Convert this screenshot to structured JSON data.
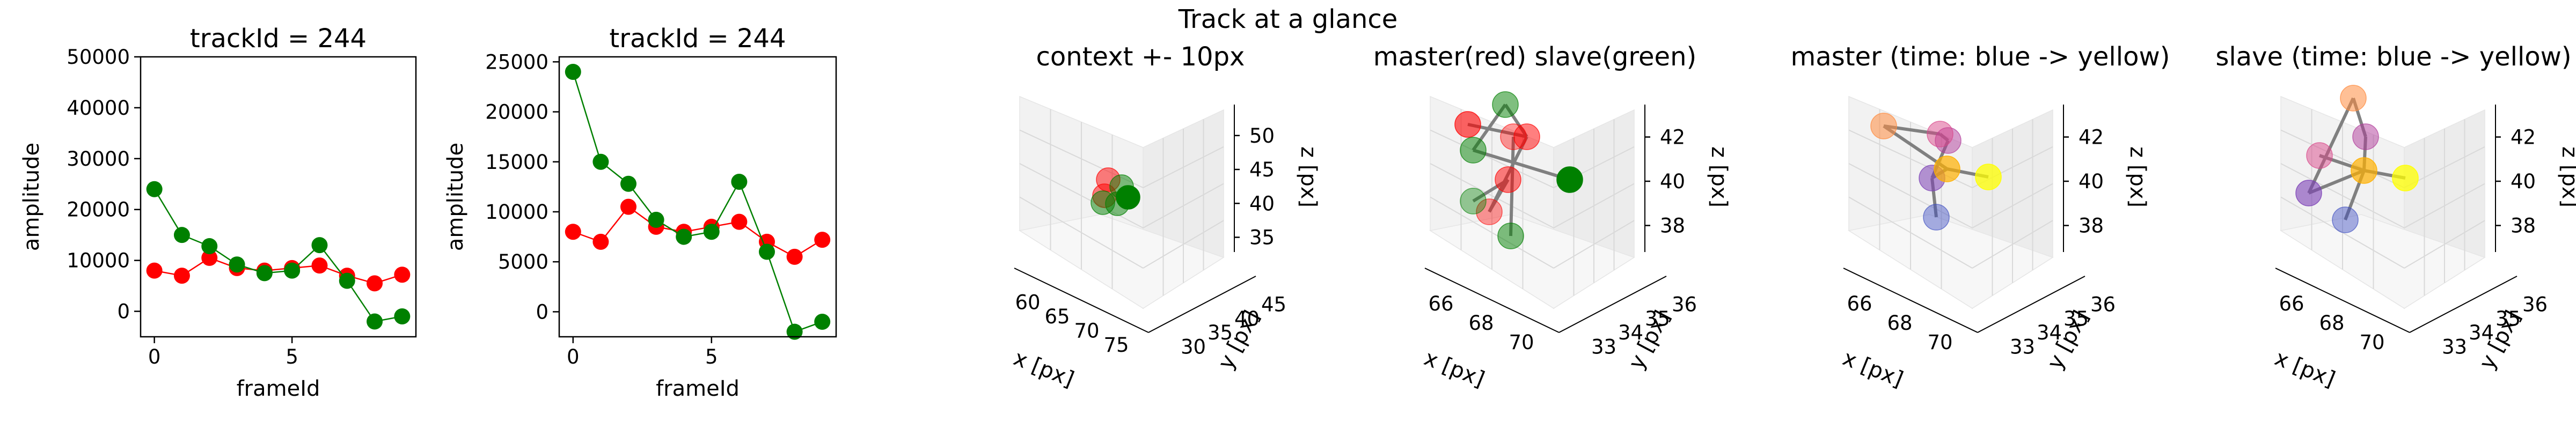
{
  "figure": {
    "suptitle": "Track at a glance"
  },
  "chart_data": [
    {
      "type": "line",
      "title": "trackId = 244",
      "xlabel": "frameId",
      "ylabel": "amplitude",
      "xlim": [
        -0.5,
        9.5
      ],
      "ylim": [
        -5000,
        50000
      ],
      "xticks": [
        "0",
        "5"
      ],
      "yticks": [
        "0",
        "10000",
        "20000",
        "30000",
        "40000",
        "50000"
      ],
      "x": [
        0,
        1,
        2,
        3,
        4,
        5,
        6,
        7,
        8,
        9
      ],
      "series": [
        {
          "color": "#ff0000",
          "values": [
            8000,
            7000,
            10500,
            8500,
            8000,
            8500,
            9000,
            7000,
            5500,
            7200
          ]
        },
        {
          "color": "#008000",
          "values": [
            24000,
            15000,
            12800,
            9200,
            7500,
            8000,
            13000,
            6000,
            -2000,
            -1000
          ]
        }
      ]
    },
    {
      "type": "line",
      "title": "trackId = 244",
      "xlabel": "frameId",
      "ylabel": "amplitude",
      "xlim": [
        -0.5,
        9.5
      ],
      "ylim": [
        -2500,
        25500
      ],
      "xticks": [
        "0",
        "5"
      ],
      "yticks": [
        "0",
        "5000",
        "10000",
        "15000",
        "20000",
        "25000"
      ],
      "x": [
        0,
        1,
        2,
        3,
        4,
        5,
        6,
        7,
        8,
        9
      ],
      "series": [
        {
          "color": "#ff0000",
          "values": [
            8000,
            7000,
            10500,
            8500,
            8000,
            8500,
            9000,
            7000,
            5500,
            7200
          ]
        },
        {
          "color": "#008000",
          "values": [
            24000,
            15000,
            12800,
            9200,
            7500,
            8000,
            13000,
            6000,
            -2000,
            -1000
          ]
        }
      ]
    },
    {
      "type": "scatter",
      "title": "context +- 10px",
      "xlabel": "x [px]",
      "ylabel": "y [px]",
      "zlabel": "z [px]",
      "xticks": [
        "60",
        "65",
        "70",
        "75"
      ],
      "yticks": [
        "30",
        "35",
        "40",
        "45"
      ],
      "zticks": [
        "35",
        "40",
        "45",
        "50"
      ],
      "points": [
        {
          "color": "#ff0000",
          "alpha": 0.5
        },
        {
          "color": "#ff0000",
          "alpha": 0.5
        },
        {
          "color": "#008000",
          "alpha": 0.5
        },
        {
          "color": "#008000",
          "alpha": 0.5
        },
        {
          "color": "#008000",
          "alpha": 0.5
        },
        {
          "color": "#008000",
          "alpha": 1.0
        }
      ]
    },
    {
      "type": "scatter",
      "title": "master(red) slave(green)",
      "xlabel": "x [px]",
      "ylabel": "y [px]",
      "zlabel": "z [px]",
      "xticks": [
        "66",
        "68",
        "70"
      ],
      "yticks": [
        "33",
        "34",
        "35",
        "36"
      ],
      "zticks": [
        "38",
        "40",
        "42"
      ],
      "points": [
        {
          "color": "#ff0000",
          "alpha": 0.6
        },
        {
          "color": "#ff0000",
          "alpha": 0.4
        },
        {
          "color": "#ff0000",
          "alpha": 0.5
        },
        {
          "color": "#ff0000",
          "alpha": 0.5
        },
        {
          "color": "#ff0000",
          "alpha": 0.4
        },
        {
          "color": "#008000",
          "alpha": 0.5
        },
        {
          "color": "#008000",
          "alpha": 0.5
        },
        {
          "color": "#008000",
          "alpha": 0.4
        },
        {
          "color": "#008000",
          "alpha": 0.5
        },
        {
          "color": "#008000",
          "alpha": 1.0
        }
      ]
    },
    {
      "type": "scatter",
      "title": "master (time: blue -> yellow)",
      "xlabel": "x [px]",
      "ylabel": "y [px]",
      "zlabel": "z [px]",
      "xticks": [
        "66",
        "68",
        "70"
      ],
      "yticks": [
        "33",
        "34",
        "35",
        "36"
      ],
      "zticks": [
        "38",
        "40",
        "42"
      ],
      "points": [
        {
          "color": "#3b4cc0",
          "alpha": 0.45
        },
        {
          "color": "#7b3fb5",
          "alpha": 0.55
        },
        {
          "color": "#b03a9a",
          "alpha": 0.5
        },
        {
          "color": "#d9478a",
          "alpha": 0.5
        },
        {
          "color": "#ff8c40",
          "alpha": 0.55
        },
        {
          "color": "#ffb000",
          "alpha": 0.7
        },
        {
          "color": "#ffff00",
          "alpha": 0.75
        }
      ]
    },
    {
      "type": "scatter",
      "title": "slave (time: blue -> yellow)",
      "xlabel": "x [px]",
      "ylabel": "y [px]",
      "zlabel": "z [px]",
      "xticks": [
        "66",
        "68",
        "70"
      ],
      "yticks": [
        "33",
        "34",
        "35",
        "36"
      ],
      "zticks": [
        "38",
        "40",
        "42"
      ],
      "points": [
        {
          "color": "#3b4cc0",
          "alpha": 0.45
        },
        {
          "color": "#7b3fb5",
          "alpha": 0.6
        },
        {
          "color": "#b03a9a",
          "alpha": 0.5
        },
        {
          "color": "#d9478a",
          "alpha": 0.5
        },
        {
          "color": "#ff8c40",
          "alpha": 0.55
        },
        {
          "color": "#ffb000",
          "alpha": 0.7
        },
        {
          "color": "#ffff00",
          "alpha": 0.75
        }
      ]
    }
  ]
}
